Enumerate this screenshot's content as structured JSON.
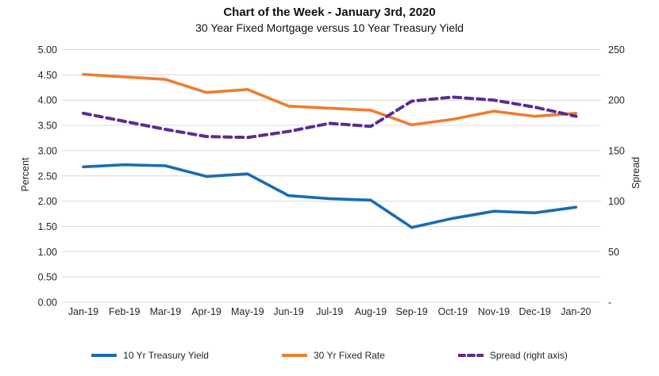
{
  "header": {
    "title": "Chart of the Week - January 3rd, 2020",
    "subtitle": "30 Year Fixed Mortgage versus 10 Year Treasury Yield"
  },
  "chart_data": {
    "type": "line",
    "categories": [
      "Jan-19",
      "Feb-19",
      "Mar-19",
      "Apr-19",
      "May-19",
      "Jun-19",
      "Jul-19",
      "Aug-19",
      "Sep-19",
      "Oct-19",
      "Nov-19",
      "Dec-19",
      "Jan-20"
    ],
    "series": [
      {
        "name": "10 Yr Treasury Yield",
        "axis": "left",
        "color": "#1B6CB0",
        "style": "solid",
        "values": [
          2.68,
          2.72,
          2.7,
          2.49,
          2.54,
          2.11,
          2.05,
          2.02,
          1.48,
          1.66,
          1.8,
          1.77,
          1.88
        ]
      },
      {
        "name": "30 Yr Fixed Rate",
        "axis": "left",
        "color": "#ED7D31",
        "style": "solid",
        "values": [
          4.51,
          4.46,
          4.41,
          4.15,
          4.21,
          3.88,
          3.84,
          3.8,
          3.51,
          3.62,
          3.78,
          3.68,
          3.74
        ]
      },
      {
        "name": "Spread (right axis)",
        "axis": "right",
        "color": "#5C2D91",
        "style": "dashed",
        "values": [
          187,
          179,
          171,
          164,
          163,
          169,
          177,
          174,
          199,
          203,
          200,
          193,
          184
        ]
      }
    ],
    "left_axis": {
      "label": "Percent",
      "min": 0,
      "max": 5,
      "step": 0.5,
      "ticks": [
        "5.00",
        "4.50",
        "4.00",
        "3.50",
        "3.00",
        "2.50",
        "2.00",
        "1.50",
        "1.00",
        "0.50",
        "0.00"
      ]
    },
    "right_axis": {
      "label": "Spread",
      "min": 0,
      "max": 250,
      "step": 50,
      "ticks": [
        "250",
        "200",
        "150",
        "100",
        "50",
        "-"
      ]
    },
    "grid": "horizontal",
    "legend_position": "bottom",
    "gridline_color": "#D9D9D9",
    "text_color": "#262626"
  }
}
